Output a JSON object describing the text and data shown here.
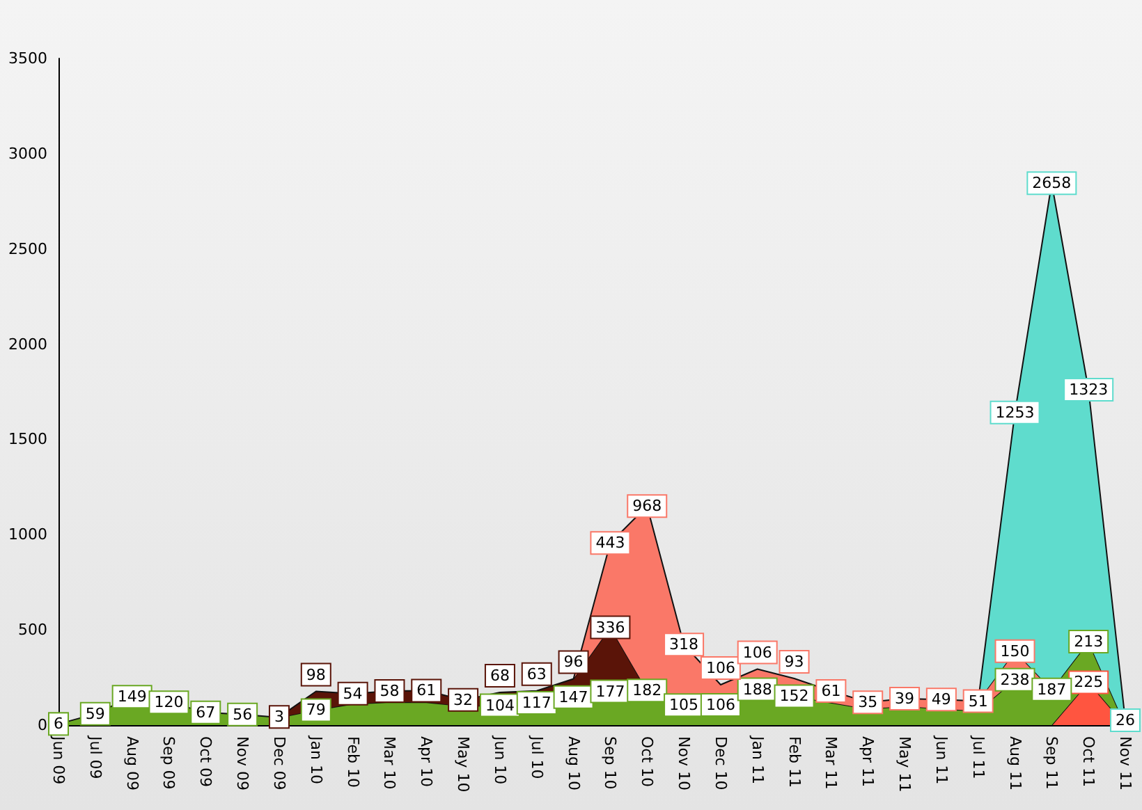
{
  "chart_data": {
    "type": "area",
    "stacked": true,
    "categories": [
      "Jun 09",
      "Jul 09",
      "Aug 09",
      "Sep 09",
      "Oct 09",
      "Nov 09",
      "Dec 09",
      "Jan 10",
      "Feb 10",
      "Mar 10",
      "Apr 10",
      "May 10",
      "Jun 10",
      "Jul 10",
      "Aug 10",
      "Sep 10",
      "Oct 10",
      "Nov 10",
      "Dec 10",
      "Jan 11",
      "Feb 11",
      "Mar 11",
      "Apr 11",
      "May 11",
      "Jun 11",
      "Jul 11",
      "Aug 11",
      "Sep 11",
      "Oct 11",
      "Nov 11"
    ],
    "ylim": [
      0,
      3500
    ],
    "yticks": [
      0,
      500,
      1000,
      1500,
      2000,
      2500,
      3000,
      3500
    ],
    "grid": false,
    "series": [
      {
        "color": "#ff5540",
        "values": [
          null,
          null,
          null,
          null,
          null,
          null,
          null,
          null,
          null,
          null,
          null,
          null,
          null,
          null,
          null,
          null,
          null,
          null,
          null,
          null,
          null,
          null,
          null,
          null,
          null,
          null,
          null,
          0,
          225,
          0
        ],
        "value_labels": [
          null,
          null,
          null,
          null,
          null,
          null,
          null,
          null,
          null,
          null,
          null,
          null,
          null,
          null,
          null,
          null,
          null,
          null,
          null,
          null,
          null,
          null,
          null,
          null,
          null,
          null,
          null,
          null,
          "225",
          null
        ]
      },
      {
        "color": "#6aa823",
        "values": [
          6,
          59,
          149,
          120,
          67,
          56,
          40,
          79,
          111,
          121,
          120,
          100,
          104,
          117,
          147,
          177,
          182,
          105,
          106,
          188,
          152,
          118,
          85,
          100,
          85,
          75,
          238,
          187,
          213,
          0
        ],
        "value_labels": [
          "6",
          "59",
          "149",
          "120",
          "67",
          "56",
          null,
          "79",
          null,
          null,
          null,
          null,
          "104",
          "117",
          "147",
          "177",
          "182",
          "105",
          "106",
          "188",
          "152",
          null,
          null,
          null,
          null,
          null,
          "238",
          "187",
          "213",
          null
        ]
      },
      {
        "color": "#5a1408",
        "values": [
          null,
          null,
          null,
          null,
          null,
          null,
          3,
          98,
          54,
          58,
          61,
          32,
          68,
          63,
          96,
          336,
          0,
          null,
          null,
          null,
          null,
          null,
          null,
          null,
          null,
          null,
          null,
          null,
          null,
          null
        ],
        "value_labels": [
          null,
          null,
          null,
          null,
          null,
          null,
          "3",
          "98",
          "54",
          "58",
          "61",
          "32",
          "68",
          "63",
          "96",
          "336",
          null,
          null,
          null,
          null,
          null,
          null,
          null,
          null,
          null,
          null,
          null,
          null,
          null,
          null
        ]
      },
      {
        "color": "#fa7868",
        "values": [
          null,
          null,
          null,
          null,
          null,
          null,
          null,
          null,
          null,
          null,
          null,
          null,
          null,
          null,
          0,
          443,
          968,
          318,
          106,
          106,
          93,
          61,
          35,
          39,
          49,
          51,
          150,
          0,
          null,
          null
        ],
        "value_labels": [
          null,
          null,
          null,
          null,
          null,
          null,
          null,
          null,
          null,
          null,
          null,
          null,
          null,
          null,
          null,
          "443",
          "968",
          "318",
          "106",
          "106",
          "93",
          "61",
          "35",
          "39",
          "49",
          "51",
          "150",
          null,
          null,
          null
        ]
      },
      {
        "color": "#5fdccd",
        "values": [
          null,
          null,
          null,
          null,
          null,
          null,
          null,
          null,
          null,
          null,
          null,
          null,
          null,
          null,
          null,
          null,
          null,
          null,
          null,
          null,
          null,
          null,
          null,
          null,
          null,
          0,
          1253,
          2658,
          1323,
          26
        ],
        "value_labels": [
          null,
          null,
          null,
          null,
          null,
          null,
          null,
          null,
          null,
          null,
          null,
          null,
          null,
          null,
          null,
          null,
          null,
          null,
          null,
          null,
          null,
          null,
          null,
          null,
          null,
          null,
          "1253",
          "2658",
          "1323",
          "26"
        ]
      }
    ]
  }
}
